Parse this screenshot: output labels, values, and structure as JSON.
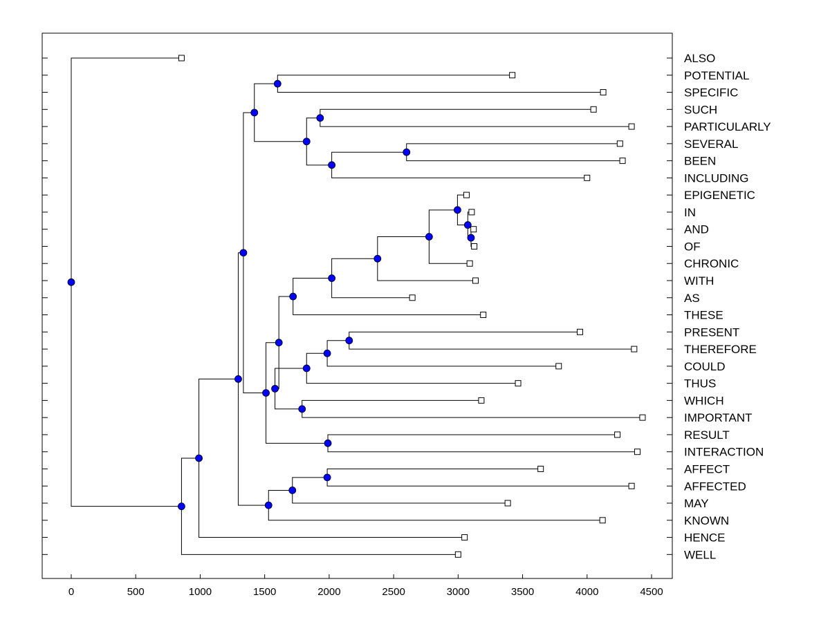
{
  "chart_data": {
    "type": "dendrogram",
    "title": "",
    "xlabel": "",
    "ylabel": "",
    "xlim": [
      -220,
      4620
    ],
    "x_ticks": [
      0,
      500,
      1000,
      1500,
      2000,
      2500,
      3000,
      3500,
      4000,
      4500
    ],
    "x_tick_labels": [
      "0",
      "500",
      "1000",
      "1500",
      "2000",
      "2500",
      "3000",
      "3500",
      "4000",
      "4500"
    ],
    "leaves": [
      {
        "label": "ALSO",
        "value": 855
      },
      {
        "label": "POTENTIAL",
        "value": 3420
      },
      {
        "label": "SPECIFIC",
        "value": 4125
      },
      {
        "label": "SUCH",
        "value": 4050
      },
      {
        "label": "PARTICULARLY",
        "value": 4345
      },
      {
        "label": "SEVERAL",
        "value": 4255
      },
      {
        "label": "BEEN",
        "value": 4275
      },
      {
        "label": "INCLUDING",
        "value": 4000
      },
      {
        "label": "EPIGENETIC",
        "value": 3065
      },
      {
        "label": "IN",
        "value": 3105
      },
      {
        "label": "AND",
        "value": 3120
      },
      {
        "label": "OF",
        "value": 3125
      },
      {
        "label": "CHRONIC",
        "value": 3090
      },
      {
        "label": "WITH",
        "value": 3135
      },
      {
        "label": "AS",
        "value": 2645
      },
      {
        "label": "THESE",
        "value": 3195
      },
      {
        "label": "PRESENT",
        "value": 3945
      },
      {
        "label": "THEREFORE",
        "value": 4365
      },
      {
        "label": "COULD",
        "value": 3780
      },
      {
        "label": "THUS",
        "value": 3465
      },
      {
        "label": "WHICH",
        "value": 3180
      },
      {
        "label": "IMPORTANT",
        "value": 4430
      },
      {
        "label": "RESULT",
        "value": 4235
      },
      {
        "label": "INTERACTION",
        "value": 4390
      },
      {
        "label": "AFFECT",
        "value": 3640
      },
      {
        "label": "AFFECTED",
        "value": 4345
      },
      {
        "label": "MAY",
        "value": 3385
      },
      {
        "label": "KNOWN",
        "value": 4120
      },
      {
        "label": "HENCE",
        "value": 3050
      },
      {
        "label": "WELL",
        "value": 3000
      }
    ],
    "merges": [
      {
        "id": "n1",
        "value": 3100,
        "children": [
          "OF",
          "AND"
        ]
      },
      {
        "id": "n2",
        "value": 3075,
        "children": [
          "n1",
          "IN"
        ]
      },
      {
        "id": "n3",
        "value": 2995,
        "children": [
          "EPIGENETIC",
          "n2"
        ]
      },
      {
        "id": "n4",
        "value": 2775,
        "children": [
          "n3",
          "CHRONIC"
        ]
      },
      {
        "id": "n5",
        "value": 2375,
        "children": [
          "n4",
          "WITH"
        ]
      },
      {
        "id": "n6",
        "value": 2020,
        "children": [
          "n5",
          "AS"
        ]
      },
      {
        "id": "n7",
        "value": 1720,
        "children": [
          "n6",
          "THESE"
        ]
      },
      {
        "id": "n8",
        "value": 2155,
        "children": [
          "PRESENT",
          "THEREFORE"
        ]
      },
      {
        "id": "n9",
        "value": 1985,
        "children": [
          "n8",
          "COULD"
        ]
      },
      {
        "id": "n10",
        "value": 1825,
        "children": [
          "n9",
          "THUS"
        ]
      },
      {
        "id": "n11",
        "value": 1790,
        "children": [
          "WHICH",
          "IMPORTANT"
        ]
      },
      {
        "id": "n12",
        "value": 1580,
        "children": [
          "n10",
          "n11"
        ]
      },
      {
        "id": "n13",
        "value": 1610,
        "children": [
          "n7",
          "n12"
        ]
      },
      {
        "id": "n14",
        "value": 1990,
        "children": [
          "RESULT",
          "INTERACTION"
        ]
      },
      {
        "id": "n15",
        "value": 1510,
        "children": [
          "n13",
          "n14"
        ]
      },
      {
        "id": "n16",
        "value": 1600,
        "children": [
          "POTENTIAL",
          "SPECIFIC"
        ]
      },
      {
        "id": "n17",
        "value": 1930,
        "children": [
          "SUCH",
          "PARTICULARLY"
        ]
      },
      {
        "id": "n18",
        "value": 2600,
        "children": [
          "SEVERAL",
          "BEEN"
        ]
      },
      {
        "id": "n19",
        "value": 2020,
        "children": [
          "n18",
          "INCLUDING"
        ]
      },
      {
        "id": "n20",
        "value": 1825,
        "children": [
          "n17",
          "n19"
        ]
      },
      {
        "id": "n21",
        "value": 1420,
        "children": [
          "n16",
          "n20"
        ]
      },
      {
        "id": "n22",
        "value": 1335,
        "children": [
          "n21",
          "n15"
        ]
      },
      {
        "id": "n23",
        "value": 1985,
        "children": [
          "AFFECT",
          "AFFECTED"
        ]
      },
      {
        "id": "n24",
        "value": 1715,
        "children": [
          "n23",
          "MAY"
        ]
      },
      {
        "id": "n25",
        "value": 1530,
        "children": [
          "n24",
          "KNOWN"
        ]
      },
      {
        "id": "n26",
        "value": 1295,
        "children": [
          "n22",
          "n25"
        ]
      },
      {
        "id": "n27",
        "value": 990,
        "children": [
          "n26",
          "HENCE"
        ]
      },
      {
        "id": "n28",
        "value": 855,
        "children": [
          "n27",
          "WELL"
        ]
      },
      {
        "id": "n29",
        "value": 0,
        "children": [
          "ALSO",
          "n28"
        ]
      }
    ]
  }
}
